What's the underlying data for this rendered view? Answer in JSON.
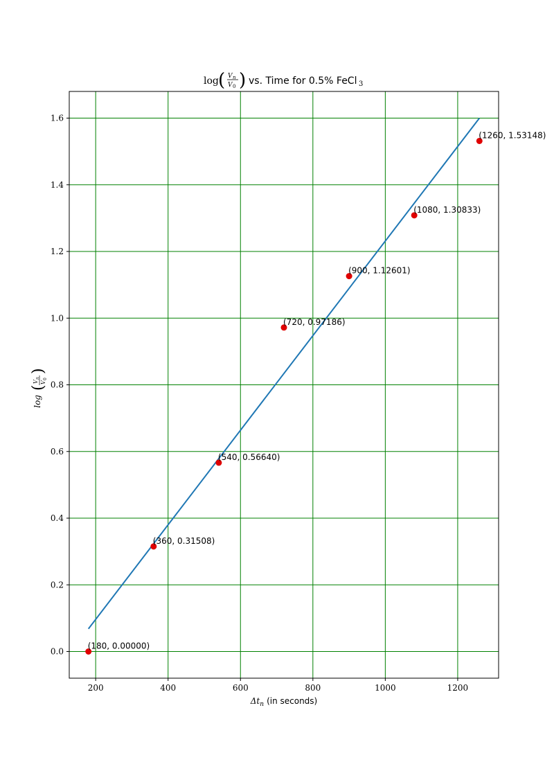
{
  "chart_data": {
    "type": "scatter",
    "title": {
      "log": "log",
      "num": "V",
      "num_sub": "n",
      "den": "V",
      "den_sub": "0",
      "middle": "vs. Time for 0.5% FeCl",
      "subscript": "3"
    },
    "xlabel": {
      "symbol": "Δt",
      "subscript": "n",
      "unit": "(in seconds)"
    },
    "ylabel": {
      "prefix": "log",
      "num": "V",
      "num_sub": "n",
      "den": "V",
      "den_sub": "0"
    },
    "xlim": [
      127,
      1313
    ],
    "ylim": [
      -0.08,
      1.68
    ],
    "xticks": [
      200,
      400,
      600,
      800,
      1000,
      1200
    ],
    "xtick_labels": [
      "200",
      "400",
      "600",
      "800",
      "1000",
      "1200"
    ],
    "yticks": [
      0.0,
      0.2,
      0.4,
      0.6,
      0.8,
      1.0,
      1.2,
      1.4,
      1.6
    ],
    "ytick_labels": [
      "0.0",
      "0.2",
      "0.4",
      "0.6",
      "0.8",
      "1.0",
      "1.2",
      "1.4",
      "1.6"
    ],
    "grid": true,
    "grid_color": "#008000",
    "points": {
      "color": "#e00000",
      "x": [
        180,
        360,
        540,
        720,
        900,
        1080,
        1260
      ],
      "y": [
        0.0,
        0.31508,
        0.5664,
        0.97186,
        1.12601,
        1.30833,
        1.53148
      ],
      "labels": [
        "(180, 0.00000)",
        "(360, 0.31508)",
        "(540, 0.56640)",
        "(720, 0.97186)",
        "(900, 1.12601)",
        "(1080, 1.30833)",
        "(1260, 1.53148)"
      ]
    },
    "fit_line": {
      "color": "#1f77b4",
      "x": [
        180,
        1260
      ],
      "y": [
        0.068,
        1.6
      ]
    }
  }
}
